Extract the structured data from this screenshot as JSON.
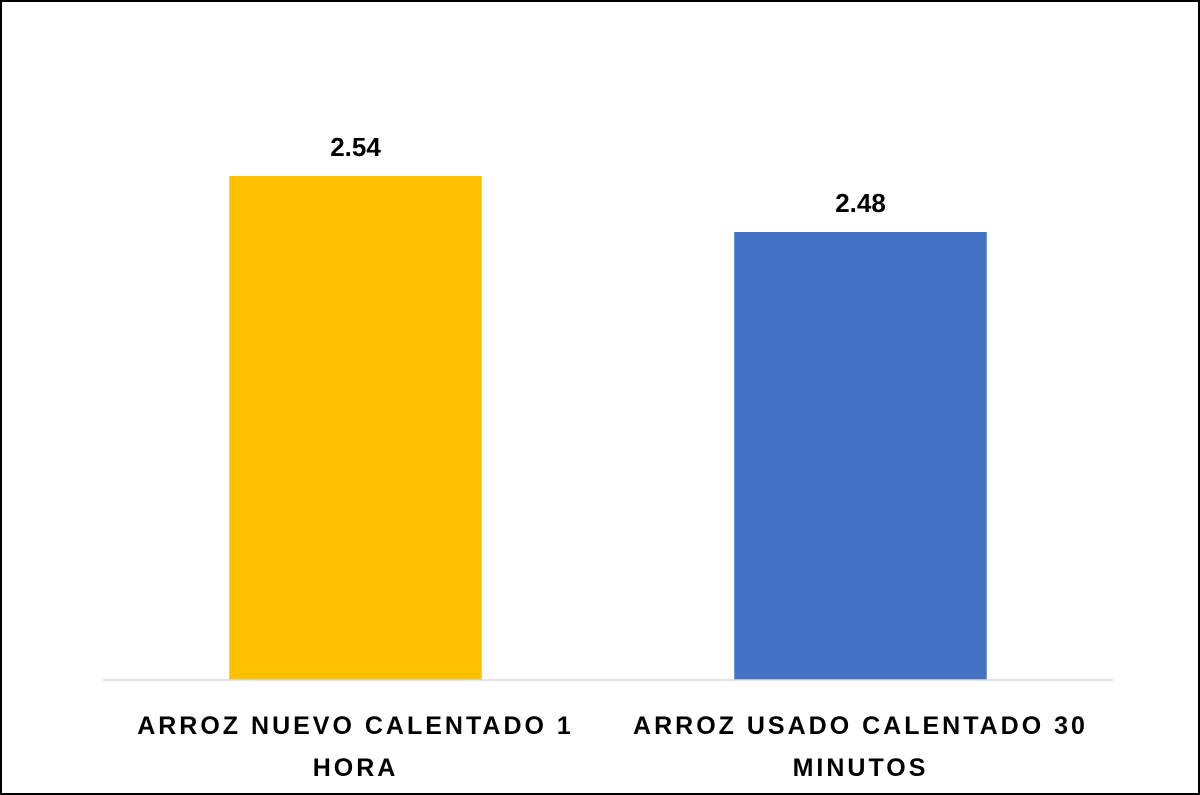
{
  "chart_data": {
    "type": "bar",
    "categories": [
      "ARROZ NUEVO CALENTADO 1 HORA",
      "ARROZ USADO CALENTADO 30 MINUTOS"
    ],
    "values": [
      2.54,
      2.48
    ],
    "colors": [
      "#ffc000",
      "#4472c4"
    ],
    "ylim": [
      2,
      2.6
    ]
  }
}
